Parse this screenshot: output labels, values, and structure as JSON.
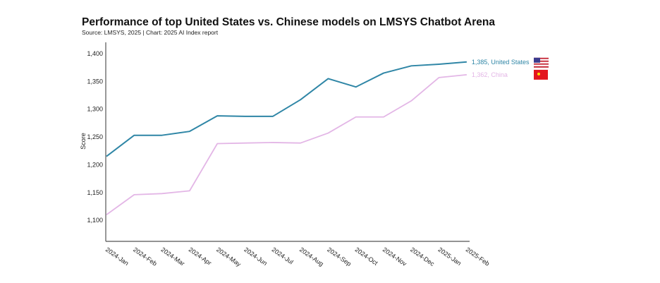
{
  "chart_data": {
    "type": "line",
    "title": "Performance of top United States vs. Chinese models on LMSYS Chatbot Arena",
    "subtitle": "Source: LMSYS, 2025 | Chart: 2025 AI Index report",
    "xlabel": "",
    "ylabel": "Score",
    "ylim": [
      1075,
      1425
    ],
    "yticks": [
      1100,
      1150,
      1200,
      1250,
      1300,
      1350,
      1400
    ],
    "ytick_labels": [
      "1,100",
      "1,150",
      "1,200",
      "1,250",
      "1,300",
      "1,350",
      "1,400"
    ],
    "categories": [
      "2024-Jan",
      "2024-Feb",
      "2024-Mar",
      "2024-Apr",
      "2024-May",
      "2024-Jun",
      "2024-Jul",
      "2024-Aug",
      "2024-Sep",
      "2024-Oct",
      "2024-Nov",
      "2024-Dec",
      "2025-Jan",
      "2025-Feb"
    ],
    "grid": false,
    "series": [
      {
        "name": "United States",
        "color": "#2f86a6",
        "end_label": "1,385, United States",
        "flag": "us-flag",
        "values": [
          1215,
          1253,
          1253,
          1260,
          1288,
          1287,
          1287,
          1317,
          1355,
          1340,
          1365,
          1378,
          1381,
          1385
        ]
      },
      {
        "name": "China",
        "color": "#e3b6e6",
        "end_label": "1,362, China",
        "flag": "china-flag",
        "values": [
          1110,
          1146,
          1148,
          1153,
          1238,
          1239,
          1240,
          1239,
          1257,
          1286,
          1286,
          1315,
          1357,
          1362
        ]
      }
    ]
  }
}
